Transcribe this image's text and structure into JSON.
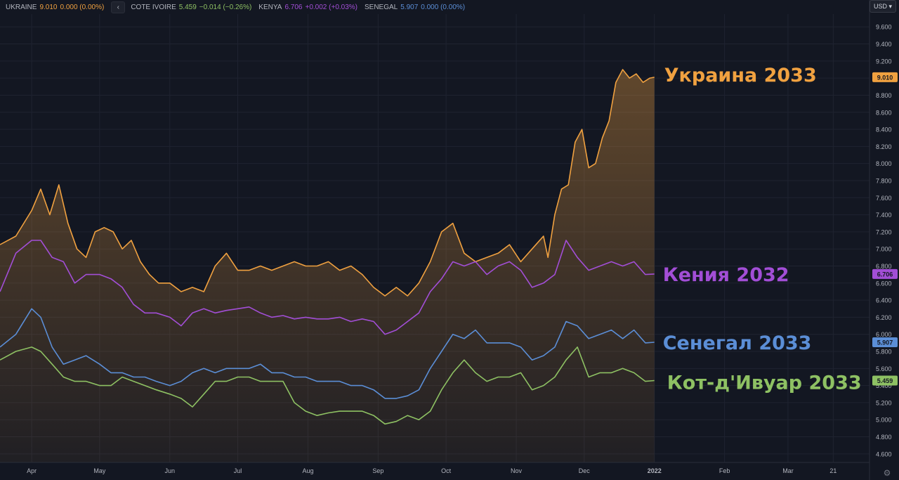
{
  "legend": [
    {
      "name": "UKRAINE",
      "value": "9.010",
      "change": "0.000 (0.00%)",
      "color": "#f0a140"
    },
    {
      "name": "COTE IVOIRE",
      "value": "5.459",
      "change": "−0.014 (−0.26%)",
      "color": "#8ec163"
    },
    {
      "name": "KENYA",
      "value": "6.706",
      "change": "+0.002 (+0.03%)",
      "color": "#a24ed6"
    },
    {
      "name": "SENEGAL",
      "value": "5.907",
      "change": "0.000 (0.00%)",
      "color": "#5b8ed6"
    }
  ],
  "collapse_glyph": "‹",
  "currency_label": "USD ▾",
  "settings_icon": "gear-icon",
  "chart_data": {
    "type": "line",
    "y_ticks": [
      "9.600",
      "9.400",
      "9.200",
      "9.000",
      "8.800",
      "8.600",
      "8.400",
      "8.200",
      "8.000",
      "7.800",
      "7.600",
      "7.400",
      "7.200",
      "7.000",
      "6.800",
      "6.600",
      "6.400",
      "6.200",
      "6.000",
      "5.800",
      "5.600",
      "5.400",
      "5.200",
      "5.000",
      "4.800",
      "4.600"
    ],
    "ylim": [
      4.5,
      9.75
    ],
    "x_ticks": [
      {
        "label": "Apr",
        "date": "2021-04-01"
      },
      {
        "label": "May",
        "date": "2021-05-01"
      },
      {
        "label": "Jun",
        "date": "2021-06-01"
      },
      {
        "label": "Jul",
        "date": "2021-07-01"
      },
      {
        "label": "Aug",
        "date": "2021-08-01"
      },
      {
        "label": "Sep",
        "date": "2021-09-01"
      },
      {
        "label": "Oct",
        "date": "2021-10-01"
      },
      {
        "label": "Nov",
        "date": "2021-11-01"
      },
      {
        "label": "Dec",
        "date": "2021-12-01"
      },
      {
        "label": "2022",
        "date": "2022-01-01"
      },
      {
        "label": "Feb",
        "date": "2022-02-01"
      },
      {
        "label": "Mar",
        "date": "2022-03-01"
      },
      {
        "label": "21",
        "date": "2022-03-21"
      }
    ],
    "x_range": [
      "2021-03-18",
      "2022-04-06"
    ],
    "grid": true,
    "series": [
      {
        "name": "UKRAINE",
        "annotation": "Украина 2033",
        "last_value": "9.010",
        "color": "#f0a140",
        "fill": true,
        "x": [
          "2021-03-18",
          "2021-03-25",
          "2021-04-01",
          "2021-04-05",
          "2021-04-09",
          "2021-04-13",
          "2021-04-17",
          "2021-04-21",
          "2021-04-25",
          "2021-04-29",
          "2021-05-03",
          "2021-05-07",
          "2021-05-11",
          "2021-05-15",
          "2021-05-19",
          "2021-05-23",
          "2021-05-27",
          "2021-06-01",
          "2021-06-06",
          "2021-06-11",
          "2021-06-16",
          "2021-06-21",
          "2021-06-26",
          "2021-07-01",
          "2021-07-06",
          "2021-07-11",
          "2021-07-16",
          "2021-07-21",
          "2021-07-26",
          "2021-07-31",
          "2021-08-05",
          "2021-08-10",
          "2021-08-15",
          "2021-08-20",
          "2021-08-25",
          "2021-08-30",
          "2021-09-04",
          "2021-09-09",
          "2021-09-14",
          "2021-09-19",
          "2021-09-24",
          "2021-09-29",
          "2021-10-04",
          "2021-10-09",
          "2021-10-14",
          "2021-10-19",
          "2021-10-24",
          "2021-10-29",
          "2021-11-03",
          "2021-11-08",
          "2021-11-13",
          "2021-11-15",
          "2021-11-18",
          "2021-11-21",
          "2021-11-24",
          "2021-11-27",
          "2021-11-30",
          "2021-12-03",
          "2021-12-06",
          "2021-12-09",
          "2021-12-12",
          "2021-12-15",
          "2021-12-18",
          "2021-12-21",
          "2021-12-24",
          "2021-12-27",
          "2021-12-30",
          "2022-01-01"
        ],
        "y": [
          7.05,
          7.15,
          7.45,
          7.7,
          7.4,
          7.75,
          7.3,
          7.0,
          6.9,
          7.2,
          7.25,
          7.2,
          7.0,
          7.1,
          6.85,
          6.7,
          6.6,
          6.6,
          6.5,
          6.55,
          6.5,
          6.8,
          6.95,
          6.75,
          6.75,
          6.8,
          6.75,
          6.8,
          6.85,
          6.8,
          6.8,
          6.85,
          6.75,
          6.8,
          6.7,
          6.55,
          6.45,
          6.55,
          6.45,
          6.6,
          6.85,
          7.2,
          7.3,
          6.95,
          6.85,
          6.9,
          6.95,
          7.05,
          6.85,
          7.0,
          7.15,
          6.9,
          7.4,
          7.7,
          7.75,
          8.25,
          8.4,
          7.95,
          8.0,
          8.3,
          8.5,
          8.95,
          9.1,
          9.0,
          9.05,
          8.95,
          9.0,
          9.01
        ]
      },
      {
        "name": "KENYA",
        "annotation": "Кения 2032",
        "last_value": "6.706",
        "color": "#a24ed6",
        "fill": false,
        "x": [
          "2021-03-18",
          "2021-03-25",
          "2021-04-01",
          "2021-04-05",
          "2021-04-10",
          "2021-04-15",
          "2021-04-20",
          "2021-04-25",
          "2021-05-01",
          "2021-05-06",
          "2021-05-11",
          "2021-05-16",
          "2021-05-21",
          "2021-05-26",
          "2021-06-01",
          "2021-06-06",
          "2021-06-11",
          "2021-06-16",
          "2021-06-21",
          "2021-06-26",
          "2021-07-01",
          "2021-07-06",
          "2021-07-11",
          "2021-07-16",
          "2021-07-21",
          "2021-07-26",
          "2021-07-31",
          "2021-08-05",
          "2021-08-10",
          "2021-08-15",
          "2021-08-20",
          "2021-08-25",
          "2021-08-30",
          "2021-09-04",
          "2021-09-09",
          "2021-09-14",
          "2021-09-19",
          "2021-09-24",
          "2021-09-29",
          "2021-10-04",
          "2021-10-09",
          "2021-10-14",
          "2021-10-19",
          "2021-10-24",
          "2021-10-29",
          "2021-11-03",
          "2021-11-08",
          "2021-11-13",
          "2021-11-18",
          "2021-11-23",
          "2021-11-28",
          "2021-12-03",
          "2021-12-08",
          "2021-12-13",
          "2021-12-18",
          "2021-12-23",
          "2021-12-28",
          "2022-01-01"
        ],
        "y": [
          6.5,
          6.95,
          7.1,
          7.1,
          6.9,
          6.85,
          6.6,
          6.7,
          6.7,
          6.65,
          6.55,
          6.35,
          6.25,
          6.25,
          6.2,
          6.1,
          6.25,
          6.3,
          6.25,
          6.28,
          6.3,
          6.32,
          6.25,
          6.2,
          6.22,
          6.18,
          6.2,
          6.18,
          6.18,
          6.2,
          6.15,
          6.18,
          6.15,
          6.0,
          6.05,
          6.15,
          6.25,
          6.5,
          6.65,
          6.85,
          6.8,
          6.85,
          6.7,
          6.8,
          6.85,
          6.75,
          6.55,
          6.6,
          6.7,
          7.1,
          6.9,
          6.75,
          6.8,
          6.85,
          6.8,
          6.85,
          6.7,
          6.706
        ]
      },
      {
        "name": "SENEGAL",
        "annotation": "Сенегал 2033",
        "last_value": "5.907",
        "color": "#5b8ed6",
        "fill": false,
        "x": [
          "2021-03-18",
          "2021-03-25",
          "2021-04-01",
          "2021-04-05",
          "2021-04-10",
          "2021-04-15",
          "2021-04-20",
          "2021-04-25",
          "2021-05-01",
          "2021-05-06",
          "2021-05-11",
          "2021-05-16",
          "2021-05-21",
          "2021-05-26",
          "2021-06-01",
          "2021-06-06",
          "2021-06-11",
          "2021-06-16",
          "2021-06-21",
          "2021-06-26",
          "2021-07-01",
          "2021-07-06",
          "2021-07-11",
          "2021-07-16",
          "2021-07-21",
          "2021-07-26",
          "2021-07-31",
          "2021-08-05",
          "2021-08-10",
          "2021-08-15",
          "2021-08-20",
          "2021-08-25",
          "2021-08-30",
          "2021-09-04",
          "2021-09-09",
          "2021-09-14",
          "2021-09-19",
          "2021-09-24",
          "2021-09-29",
          "2021-10-04",
          "2021-10-09",
          "2021-10-14",
          "2021-10-19",
          "2021-10-24",
          "2021-10-29",
          "2021-11-03",
          "2021-11-08",
          "2021-11-13",
          "2021-11-18",
          "2021-11-23",
          "2021-11-28",
          "2021-12-03",
          "2021-12-08",
          "2021-12-13",
          "2021-12-18",
          "2021-12-23",
          "2021-12-28",
          "2022-01-01"
        ],
        "y": [
          5.85,
          6.0,
          6.3,
          6.2,
          5.85,
          5.65,
          5.7,
          5.75,
          5.65,
          5.55,
          5.55,
          5.5,
          5.5,
          5.45,
          5.4,
          5.45,
          5.55,
          5.6,
          5.55,
          5.6,
          5.6,
          5.6,
          5.65,
          5.55,
          5.55,
          5.5,
          5.5,
          5.45,
          5.45,
          5.45,
          5.4,
          5.4,
          5.35,
          5.25,
          5.25,
          5.28,
          5.35,
          5.6,
          5.8,
          6.0,
          5.95,
          6.05,
          5.9,
          5.9,
          5.9,
          5.85,
          5.7,
          5.75,
          5.85,
          6.15,
          6.1,
          5.95,
          6.0,
          6.05,
          5.95,
          6.05,
          5.9,
          5.907
        ]
      },
      {
        "name": "COTE IVOIRE",
        "annotation": "Кот-д'Ивуар 2033",
        "last_value": "5.459",
        "color": "#8ec163",
        "fill": false,
        "x": [
          "2021-03-18",
          "2021-03-25",
          "2021-04-01",
          "2021-04-05",
          "2021-04-10",
          "2021-04-15",
          "2021-04-20",
          "2021-04-25",
          "2021-05-01",
          "2021-05-06",
          "2021-05-11",
          "2021-05-16",
          "2021-05-21",
          "2021-05-26",
          "2021-06-01",
          "2021-06-06",
          "2021-06-11",
          "2021-06-16",
          "2021-06-21",
          "2021-06-26",
          "2021-07-01",
          "2021-07-06",
          "2021-07-11",
          "2021-07-16",
          "2021-07-21",
          "2021-07-26",
          "2021-07-31",
          "2021-08-05",
          "2021-08-10",
          "2021-08-15",
          "2021-08-20",
          "2021-08-25",
          "2021-08-30",
          "2021-09-04",
          "2021-09-09",
          "2021-09-14",
          "2021-09-19",
          "2021-09-24",
          "2021-09-29",
          "2021-10-04",
          "2021-10-09",
          "2021-10-14",
          "2021-10-19",
          "2021-10-24",
          "2021-10-29",
          "2021-11-03",
          "2021-11-08",
          "2021-11-13",
          "2021-11-18",
          "2021-11-23",
          "2021-11-28",
          "2021-12-03",
          "2021-12-08",
          "2021-12-13",
          "2021-12-18",
          "2021-12-23",
          "2021-12-28",
          "2022-01-01"
        ],
        "y": [
          5.7,
          5.8,
          5.85,
          5.8,
          5.65,
          5.5,
          5.45,
          5.45,
          5.4,
          5.4,
          5.5,
          5.45,
          5.4,
          5.35,
          5.3,
          5.25,
          5.15,
          5.3,
          5.45,
          5.45,
          5.5,
          5.5,
          5.45,
          5.45,
          5.45,
          5.2,
          5.1,
          5.05,
          5.08,
          5.1,
          5.1,
          5.1,
          5.05,
          4.95,
          4.98,
          5.05,
          5.0,
          5.1,
          5.35,
          5.55,
          5.7,
          5.55,
          5.45,
          5.5,
          5.5,
          5.55,
          5.35,
          5.4,
          5.5,
          5.7,
          5.85,
          5.5,
          5.55,
          5.55,
          5.6,
          5.55,
          5.45,
          5.459
        ]
      }
    ]
  }
}
